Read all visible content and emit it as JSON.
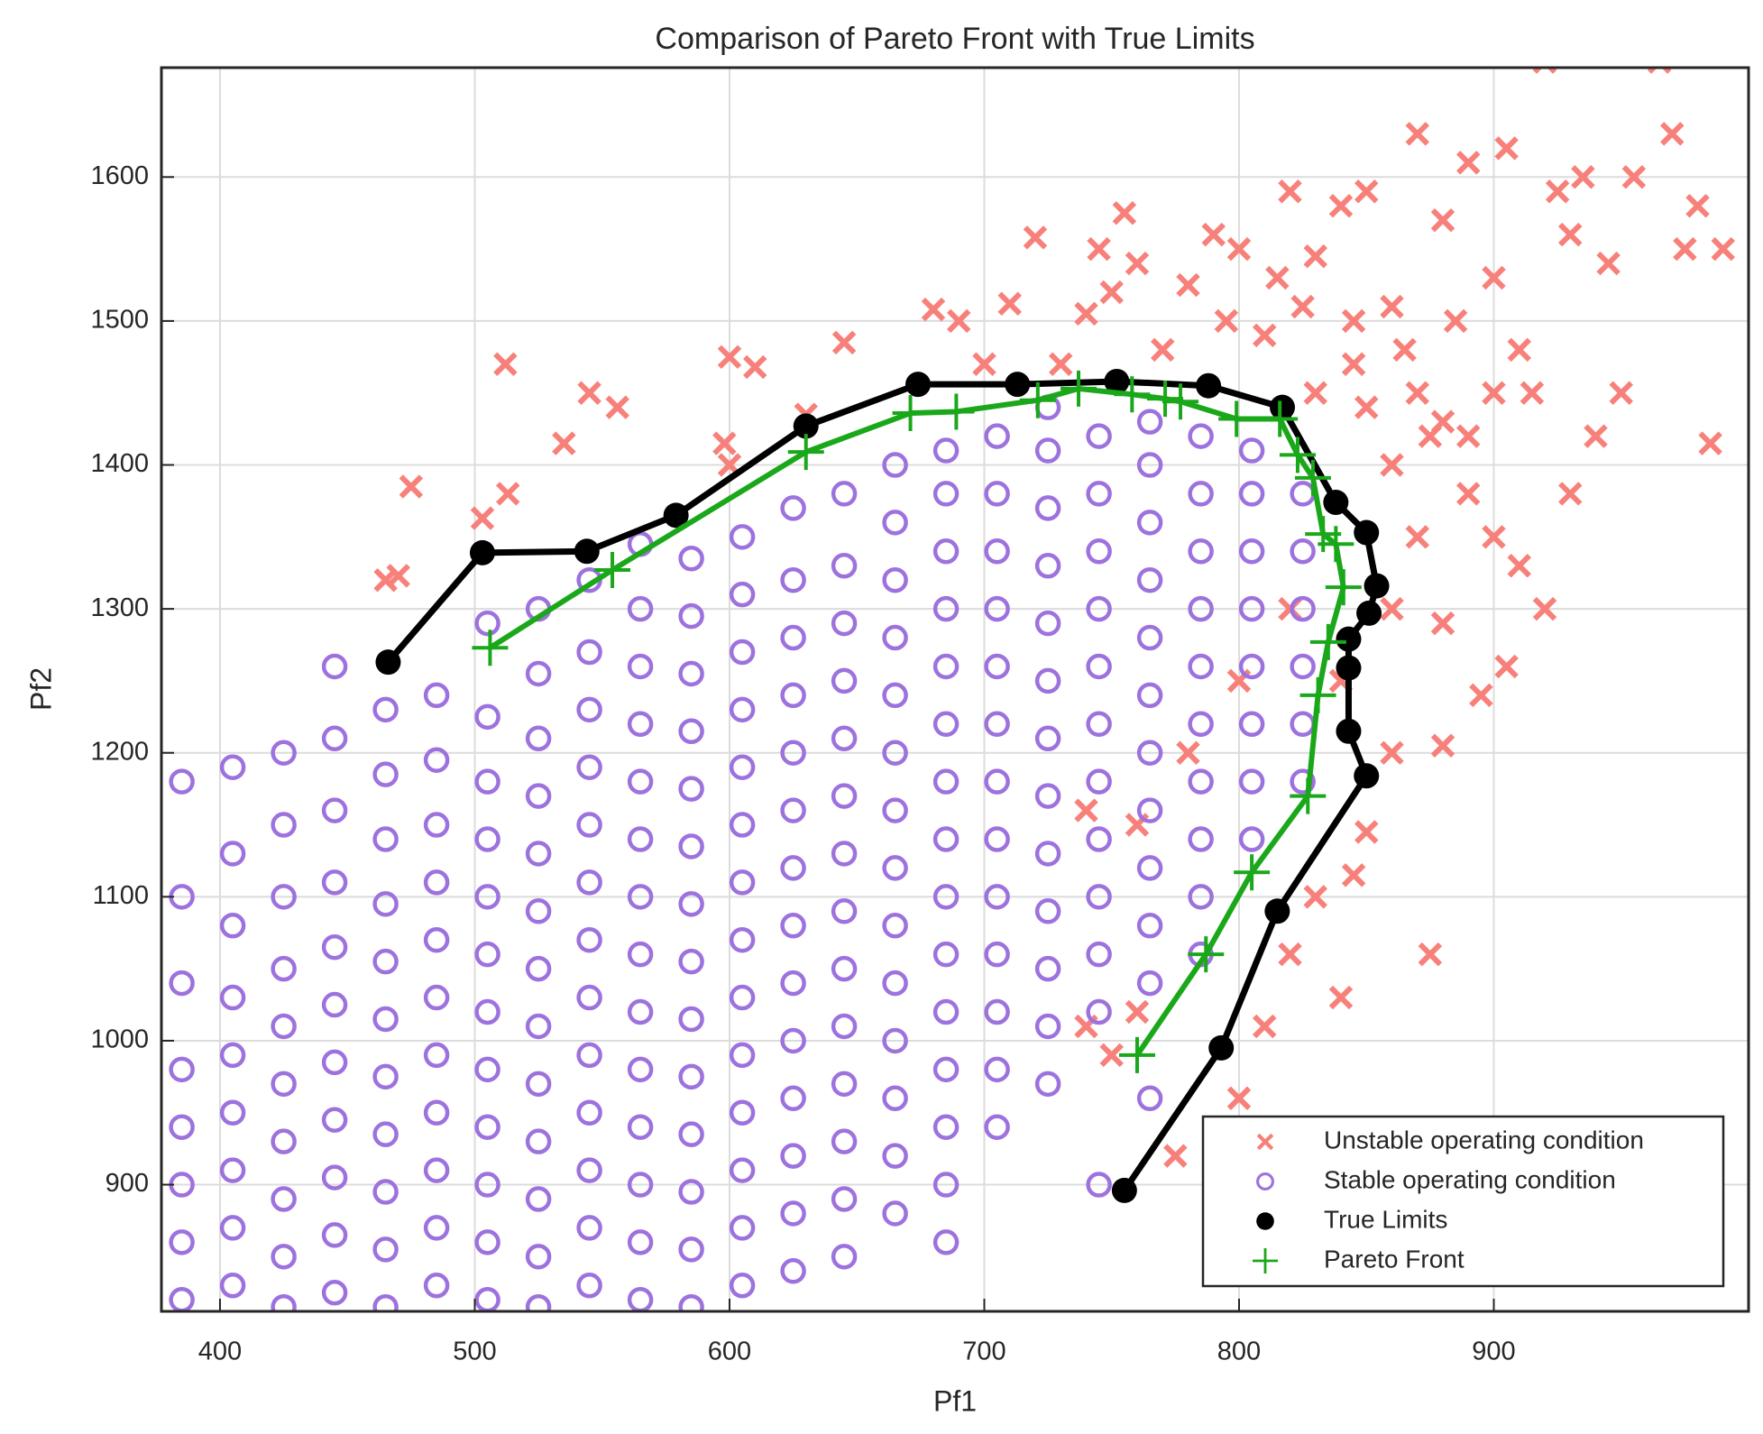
{
  "chart_data": {
    "type": "scatter",
    "title": "Comparison of Pareto Front with True Limits",
    "x_label": "Pf1",
    "y_label": "Pf2",
    "xlim": [
      377,
      1000
    ],
    "ylim": [
      812,
      1676
    ],
    "xticks": [
      400,
      500,
      600,
      700,
      800,
      900
    ],
    "yticks": [
      900,
      1000,
      1100,
      1200,
      1300,
      1400,
      1500,
      1600
    ],
    "grid": true,
    "legend": "southeast",
    "series": [
      {
        "name": "Unstable operating condition",
        "color": "#f8807a",
        "marker": "x",
        "line": false,
        "x": [
          465,
          475,
          470,
          503,
          513,
          512,
          535,
          545,
          556,
          600,
          610,
          598,
          600,
          630,
          645,
          680,
          690,
          700,
          710,
          720,
          730,
          740,
          745,
          750,
          755,
          760,
          770,
          780,
          790,
          795,
          800,
          810,
          815,
          820,
          825,
          830,
          840,
          845,
          850,
          860,
          870,
          880,
          885,
          890,
          900,
          905,
          910,
          915,
          920,
          925,
          930,
          935,
          945,
          955,
          965,
          970,
          975,
          980,
          985,
          990,
          950,
          940,
          930,
          920,
          905,
          895,
          880,
          875,
          860,
          850,
          845,
          840,
          830,
          820,
          810,
          800,
          775,
          760,
          750,
          740,
          860,
          870,
          880,
          890,
          900,
          910,
          870,
          850,
          860,
          880,
          900,
          840,
          820,
          800,
          780,
          760,
          740,
          890,
          830,
          845,
          865,
          875
        ],
        "values": [
          1320,
          1385,
          1323,
          1363,
          1380,
          1470,
          1415,
          1450,
          1440,
          1475,
          1468,
          1415,
          1400,
          1435,
          1485,
          1508,
          1500,
          1470,
          1512,
          1558,
          1470,
          1505,
          1550,
          1520,
          1575,
          1540,
          1480,
          1525,
          1560,
          1500,
          1550,
          1490,
          1530,
          1590,
          1510,
          1545,
          1580,
          1500,
          1590,
          1510,
          1630,
          1570,
          1500,
          1610,
          1530,
          1620,
          1480,
          1450,
          1680,
          1590,
          1560,
          1600,
          1540,
          1600,
          1680,
          1630,
          1550,
          1580,
          1415,
          1550,
          1450,
          1420,
          1380,
          1300,
          1260,
          1240,
          1205,
          1060,
          1200,
          1145,
          1115,
          1030,
          1100,
          1060,
          1010,
          960,
          920,
          1020,
          990,
          1010,
          1400,
          1350,
          1430,
          1380,
          1450,
          1330,
          1450,
          1440,
          1300,
          1290,
          1350,
          1250,
          1300,
          1250,
          1200,
          1150,
          1160,
          1420,
          1450,
          1470,
          1480,
          1420
        ]
      },
      {
        "name": "Stable operating condition",
        "color": "#9e72de",
        "marker": "o",
        "line": false,
        "x": [
          385,
          385,
          385,
          385,
          385,
          385,
          385,
          385,
          405,
          405,
          405,
          405,
          405,
          405,
          405,
          405,
          405,
          425,
          425,
          425,
          425,
          425,
          425,
          425,
          425,
          425,
          425,
          445,
          445,
          445,
          445,
          445,
          445,
          445,
          445,
          445,
          445,
          445,
          465,
          465,
          465,
          465,
          465,
          465,
          465,
          465,
          465,
          465,
          465,
          485,
          485,
          485,
          485,
          485,
          485,
          485,
          485,
          485,
          485,
          485,
          505,
          505,
          505,
          505,
          505,
          505,
          505,
          505,
          505,
          505,
          505,
          505,
          525,
          525,
          525,
          525,
          525,
          525,
          525,
          525,
          525,
          525,
          525,
          525,
          525,
          545,
          545,
          545,
          545,
          545,
          545,
          545,
          545,
          545,
          545,
          545,
          545,
          545,
          565,
          565,
          565,
          565,
          565,
          565,
          565,
          565,
          565,
          565,
          565,
          565,
          565,
          565,
          585,
          585,
          585,
          585,
          585,
          585,
          585,
          585,
          585,
          585,
          585,
          585,
          585,
          585,
          605,
          605,
          605,
          605,
          605,
          605,
          605,
          605,
          605,
          605,
          605,
          605,
          605,
          605,
          625,
          625,
          625,
          625,
          625,
          625,
          625,
          625,
          625,
          625,
          625,
          625,
          625,
          625,
          645,
          645,
          645,
          645,
          645,
          645,
          645,
          645,
          645,
          645,
          645,
          645,
          645,
          645,
          665,
          665,
          665,
          665,
          665,
          665,
          665,
          665,
          665,
          665,
          665,
          665,
          665,
          665,
          685,
          685,
          685,
          685,
          685,
          685,
          685,
          685,
          685,
          685,
          685,
          685,
          685,
          685,
          685,
          705,
          705,
          705,
          705,
          705,
          705,
          705,
          705,
          705,
          705,
          705,
          705,
          705,
          725,
          725,
          725,
          725,
          725,
          725,
          725,
          725,
          725,
          725,
          725,
          725,
          725,
          745,
          745,
          745,
          745,
          745,
          745,
          745,
          745,
          745,
          745,
          745,
          745,
          765,
          765,
          765,
          765,
          765,
          765,
          765,
          765,
          765,
          765,
          765,
          765,
          785,
          785,
          785,
          785,
          785,
          785,
          785,
          785,
          785,
          785,
          805,
          805,
          805,
          805,
          805,
          805,
          805,
          805,
          825,
          825,
          825,
          825,
          825,
          825
        ],
        "values": [
          820,
          860,
          900,
          940,
          980,
          1040,
          1100,
          1180,
          830,
          870,
          910,
          950,
          990,
          1030,
          1080,
          1130,
          1190,
          815,
          850,
          890,
          930,
          970,
          1010,
          1050,
          1100,
          1150,
          1200,
          825,
          865,
          905,
          945,
          985,
          1025,
          1065,
          1110,
          1160,
          1210,
          1260,
          815,
          855,
          895,
          935,
          975,
          1015,
          1055,
          1095,
          1140,
          1185,
          1230,
          830,
          870,
          910,
          950,
          990,
          1030,
          1070,
          1110,
          1150,
          1195,
          1240,
          820,
          860,
          900,
          940,
          980,
          1020,
          1060,
          1100,
          1140,
          1180,
          1225,
          1290,
          815,
          850,
          890,
          930,
          970,
          1010,
          1050,
          1090,
          1130,
          1170,
          1210,
          1255,
          1300,
          830,
          870,
          910,
          950,
          990,
          1030,
          1070,
          1110,
          1150,
          1190,
          1230,
          1270,
          1320,
          820,
          860,
          900,
          940,
          980,
          1020,
          1060,
          1100,
          1140,
          1180,
          1220,
          1260,
          1300,
          1345,
          815,
          855,
          895,
          935,
          975,
          1015,
          1055,
          1095,
          1135,
          1175,
          1215,
          1255,
          1295,
          1335,
          830,
          870,
          910,
          950,
          990,
          1030,
          1070,
          1110,
          1150,
          1190,
          1230,
          1270,
          1310,
          1350,
          840,
          880,
          920,
          960,
          1000,
          1040,
          1080,
          1120,
          1160,
          1200,
          1240,
          1280,
          1320,
          1370,
          850,
          890,
          930,
          970,
          1010,
          1050,
          1090,
          1130,
          1170,
          1210,
          1250,
          1290,
          1330,
          1380,
          880,
          920,
          960,
          1000,
          1040,
          1080,
          1120,
          1160,
          1200,
          1240,
          1280,
          1320,
          1360,
          1400,
          860,
          900,
          940,
          980,
          1020,
          1060,
          1100,
          1140,
          1180,
          1220,
          1260,
          1300,
          1340,
          1380,
          1410,
          940,
          980,
          1020,
          1060,
          1100,
          1140,
          1180,
          1220,
          1260,
          1300,
          1340,
          1380,
          1420,
          970,
          1010,
          1050,
          1090,
          1130,
          1170,
          1210,
          1250,
          1290,
          1330,
          1370,
          1410,
          1440,
          900,
          1020,
          1060,
          1100,
          1140,
          1180,
          1220,
          1260,
          1300,
          1340,
          1380,
          1420,
          960,
          1040,
          1080,
          1120,
          1160,
          1200,
          1240,
          1280,
          1320,
          1360,
          1400,
          1430,
          1060,
          1100,
          1140,
          1180,
          1220,
          1260,
          1300,
          1340,
          1380,
          1420,
          1140,
          1180,
          1220,
          1260,
          1300,
          1340,
          1380,
          1410,
          1180,
          1220,
          1260,
          1300,
          1340,
          1380
        ]
      },
      {
        "name": "True Limits",
        "color": "#000000",
        "marker": "dot",
        "line": true,
        "x": [
          466,
          503,
          544,
          579,
          630,
          674,
          713,
          752,
          788,
          817,
          838,
          850,
          854,
          851,
          843,
          843,
          843,
          850,
          815,
          793,
          755
        ],
        "values": [
          1263,
          1339,
          1340,
          1365,
          1427,
          1456,
          1456,
          1458,
          1455,
          1440,
          1374,
          1353,
          1316,
          1297,
          1279,
          1259,
          1215,
          1184,
          1090,
          995,
          896
        ]
      },
      {
        "name": "Pareto Front",
        "color": "#1aa81a",
        "marker": "+",
        "line": true,
        "x": [
          506,
          554,
          630,
          671,
          689,
          721,
          737,
          758,
          771,
          777,
          799,
          816,
          823,
          829,
          833,
          838,
          841,
          835,
          831,
          827,
          805,
          787,
          760
        ],
        "values": [
          1273,
          1327,
          1409,
          1436,
          1437,
          1445,
          1453,
          1449,
          1446,
          1444,
          1432,
          1432,
          1407,
          1391,
          1352,
          1345,
          1315,
          1277,
          1240,
          1170,
          1117,
          1060,
          990
        ]
      }
    ]
  }
}
